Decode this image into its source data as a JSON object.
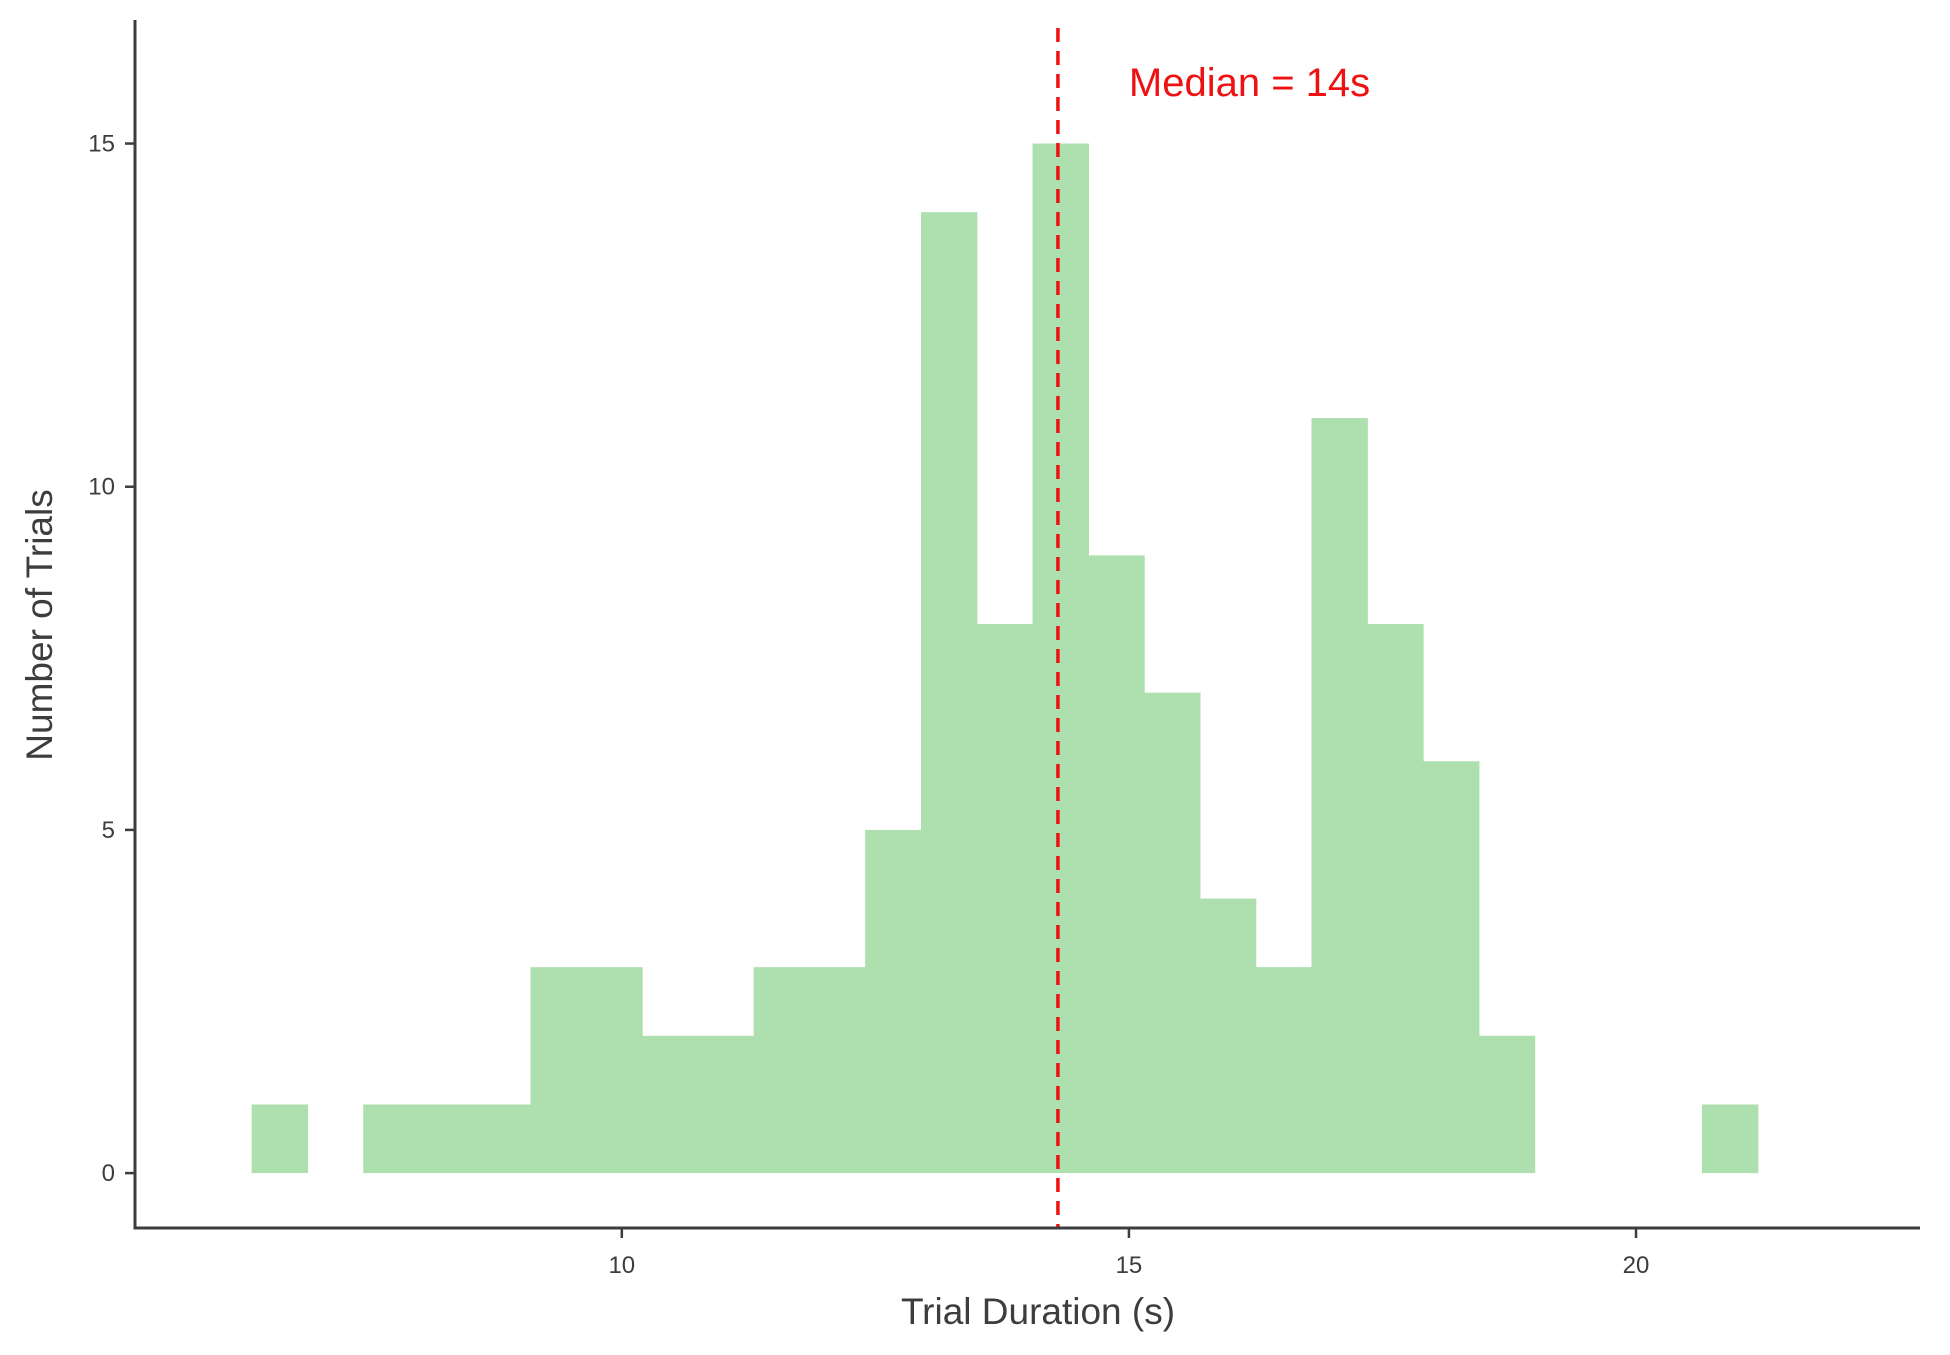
{
  "chart_data": {
    "type": "bar",
    "subtype": "histogram",
    "title": "",
    "xlabel": "Trial Duration (s)",
    "ylabel": "Number of Trials",
    "xlim": [
      5.2,
      22.8
    ],
    "ylim": [
      -0.8,
      16.8
    ],
    "x_ticks": [
      {
        "value": 10,
        "label": "10"
      },
      {
        "value": 15,
        "label": "15"
      },
      {
        "value": 20,
        "label": "20"
      }
    ],
    "y_ticks": [
      {
        "value": 0,
        "label": "0"
      },
      {
        "value": 5,
        "label": "5"
      },
      {
        "value": 10,
        "label": "10"
      },
      {
        "value": 15,
        "label": "15"
      }
    ],
    "bin_width": 0.55,
    "bins": [
      {
        "x0": 6.35,
        "x1": 6.9,
        "count": 1
      },
      {
        "x0": 6.9,
        "x1": 7.45,
        "count": 0
      },
      {
        "x0": 7.45,
        "x1": 8.0,
        "count": 1
      },
      {
        "x0": 8.0,
        "x1": 8.55,
        "count": 1
      },
      {
        "x0": 8.55,
        "x1": 9.1,
        "count": 1
      },
      {
        "x0": 9.1,
        "x1": 9.65,
        "count": 3
      },
      {
        "x0": 9.65,
        "x1": 10.2,
        "count": 3
      },
      {
        "x0": 10.2,
        "x1": 10.75,
        "count": 2
      },
      {
        "x0": 10.75,
        "x1": 11.3,
        "count": 2
      },
      {
        "x0": 11.3,
        "x1": 11.85,
        "count": 3
      },
      {
        "x0": 11.85,
        "x1": 12.4,
        "count": 3
      },
      {
        "x0": 12.4,
        "x1": 12.95,
        "count": 5
      },
      {
        "x0": 12.95,
        "x1": 13.5,
        "count": 14
      },
      {
        "x0": 13.5,
        "x1": 14.05,
        "count": 8
      },
      {
        "x0": 14.05,
        "x1": 14.6,
        "count": 15
      },
      {
        "x0": 14.6,
        "x1": 15.15,
        "count": 9
      },
      {
        "x0": 15.15,
        "x1": 15.7,
        "count": 7
      },
      {
        "x0": 15.7,
        "x1": 16.25,
        "count": 4
      },
      {
        "x0": 16.25,
        "x1": 16.8,
        "count": 3
      },
      {
        "x0": 16.8,
        "x1": 17.35,
        "count": 11
      },
      {
        "x0": 17.35,
        "x1": 17.9,
        "count": 8
      },
      {
        "x0": 17.9,
        "x1": 18.45,
        "count": 6
      },
      {
        "x0": 18.45,
        "x1": 19.0,
        "count": 2
      },
      {
        "x0": 19.0,
        "x1": 19.55,
        "count": 0
      },
      {
        "x0": 19.55,
        "x1": 20.1,
        "count": 0
      },
      {
        "x0": 20.1,
        "x1": 20.65,
        "count": 0
      },
      {
        "x0": 20.65,
        "x1": 21.2,
        "count": 1
      }
    ],
    "bar_color": "#AEDFAE",
    "median_line": {
      "x": 14.3,
      "color": "#EE1111",
      "style": "dashed"
    },
    "annotation": {
      "text": "Median = 14s",
      "x": 15.0,
      "y": 15.9,
      "color": "#EE1111"
    },
    "grid": false,
    "legend": "none",
    "axis_color": "#3d3d3d"
  }
}
